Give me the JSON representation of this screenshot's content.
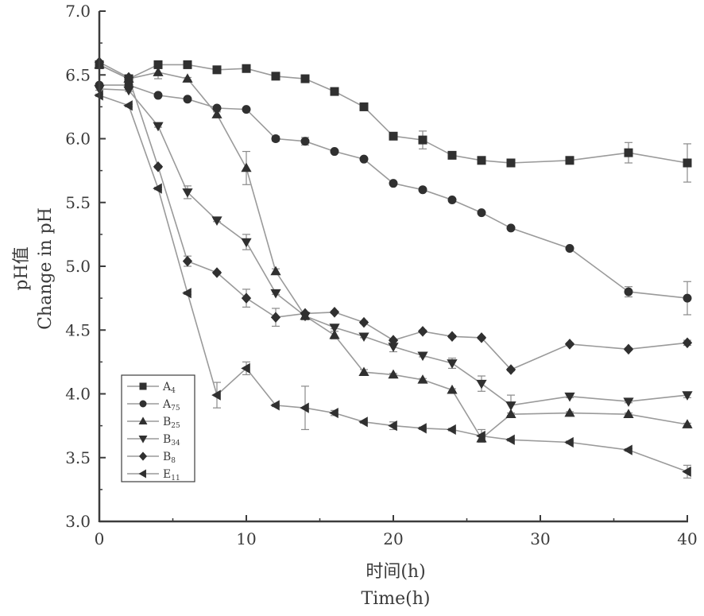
{
  "chart_data": {
    "type": "line",
    "xlabel_cn": "时间(h)",
    "xlabel_en": "Time(h)",
    "ylabel_cn": "pH值",
    "ylabel_en": "Change  in  pH",
    "xlim": [
      0,
      40
    ],
    "ylim": [
      3.0,
      7.0
    ],
    "x_ticks": [
      "0",
      "10",
      "20",
      "30",
      "40"
    ],
    "y_ticks": [
      "3.0",
      "3.5",
      "4.0",
      "4.5",
      "5.0",
      "5.5",
      "6.0",
      "6.5",
      "7.0"
    ],
    "grid": false,
    "legend_position": "bottom-left",
    "series": [
      {
        "name": "A",
        "subscript": "4",
        "marker": "square",
        "x": [
          0,
          2,
          4,
          6,
          8,
          10,
          12,
          14,
          16,
          18,
          20,
          22,
          24,
          26,
          28,
          32,
          36,
          40
        ],
        "y": [
          6.58,
          6.47,
          6.58,
          6.58,
          6.54,
          6.55,
          6.49,
          6.47,
          6.37,
          6.25,
          6.02,
          5.99,
          5.87,
          5.83,
          5.81,
          5.83,
          5.89,
          5.81
        ],
        "err": [
          0.02,
          0.02,
          0.02,
          0.01,
          0.01,
          0.01,
          0.01,
          0.01,
          0.01,
          0.03,
          0.01,
          0.07,
          0.02,
          0.01,
          0.01,
          0.01,
          0.08,
          0.15
        ]
      },
      {
        "name": "A",
        "subscript": "75",
        "marker": "circle",
        "x": [
          0,
          2,
          4,
          6,
          8,
          10,
          12,
          14,
          16,
          18,
          20,
          22,
          24,
          26,
          28,
          32,
          36,
          40
        ],
        "y": [
          6.42,
          6.42,
          6.34,
          6.31,
          6.24,
          6.23,
          6.0,
          5.98,
          5.9,
          5.84,
          5.65,
          5.6,
          5.52,
          5.42,
          5.3,
          5.14,
          4.8,
          4.75
        ],
        "err": [
          0.01,
          0.01,
          0.01,
          0.01,
          0.01,
          0.01,
          0.02,
          0.03,
          0.01,
          0.01,
          0.01,
          0.01,
          0.01,
          0.01,
          0.01,
          0.01,
          0.04,
          0.13
        ]
      },
      {
        "name": "B",
        "subscript": "25",
        "marker": "triangle-up",
        "x": [
          0,
          2,
          4,
          6,
          8,
          10,
          12,
          14,
          16,
          18,
          20,
          22,
          24,
          26,
          28,
          32,
          36,
          40
        ],
        "y": [
          6.58,
          6.47,
          6.52,
          6.47,
          6.19,
          5.77,
          4.96,
          4.61,
          4.46,
          4.17,
          4.15,
          4.11,
          4.03,
          3.65,
          3.84,
          3.85,
          3.84,
          3.76
        ],
        "err": [
          0.01,
          0.01,
          0.05,
          0.01,
          0.02,
          0.13,
          0.02,
          0.03,
          0.03,
          0.02,
          0.01,
          0.01,
          0.01,
          0.02,
          0.01,
          0.01,
          0.01,
          0.01
        ]
      },
      {
        "name": "B",
        "subscript": "34",
        "marker": "triangle-down",
        "x": [
          0,
          2,
          4,
          6,
          8,
          10,
          12,
          14,
          16,
          18,
          20,
          22,
          24,
          26,
          28,
          32,
          36,
          40
        ],
        "y": [
          6.39,
          6.38,
          6.1,
          5.58,
          5.36,
          5.19,
          4.79,
          4.61,
          4.52,
          4.45,
          4.37,
          4.3,
          4.24,
          4.08,
          3.91,
          3.98,
          3.94,
          3.99
        ],
        "err": [
          0.01,
          0.01,
          0.01,
          0.05,
          0.01,
          0.06,
          0.01,
          0.01,
          0.01,
          0.01,
          0.04,
          0.01,
          0.04,
          0.06,
          0.08,
          0.01,
          0.01,
          0.02
        ]
      },
      {
        "name": "B",
        "subscript": "8",
        "marker": "diamond",
        "x": [
          0,
          2,
          4,
          6,
          8,
          10,
          12,
          14,
          16,
          18,
          20,
          22,
          24,
          26,
          28,
          32,
          36,
          40
        ],
        "y": [
          6.6,
          6.48,
          5.78,
          5.04,
          4.95,
          4.75,
          4.6,
          4.63,
          4.64,
          4.56,
          4.42,
          4.49,
          4.45,
          4.44,
          4.19,
          4.39,
          4.35,
          4.4
        ],
        "err": [
          0.01,
          0.01,
          0.01,
          0.04,
          0.01,
          0.07,
          0.07,
          0.01,
          0.01,
          0.01,
          0.01,
          0.01,
          0.01,
          0.01,
          0.01,
          0.01,
          0.01,
          0.02
        ]
      },
      {
        "name": "E",
        "subscript": "11",
        "marker": "triangle-left",
        "x": [
          0,
          2,
          4,
          6,
          8,
          10,
          12,
          14,
          16,
          18,
          20,
          22,
          24,
          26,
          28,
          32,
          36,
          40
        ],
        "y": [
          6.34,
          6.26,
          5.61,
          4.79,
          3.99,
          4.2,
          3.91,
          3.89,
          3.85,
          3.78,
          3.75,
          3.73,
          3.72,
          3.67,
          3.64,
          3.62,
          3.56,
          3.39
        ],
        "err": [
          0.01,
          0.01,
          0.01,
          0.01,
          0.1,
          0.05,
          0.01,
          0.17,
          0.02,
          0.01,
          0.03,
          0.01,
          0.01,
          0.05,
          0.01,
          0.01,
          0.01,
          0.05
        ]
      }
    ]
  }
}
